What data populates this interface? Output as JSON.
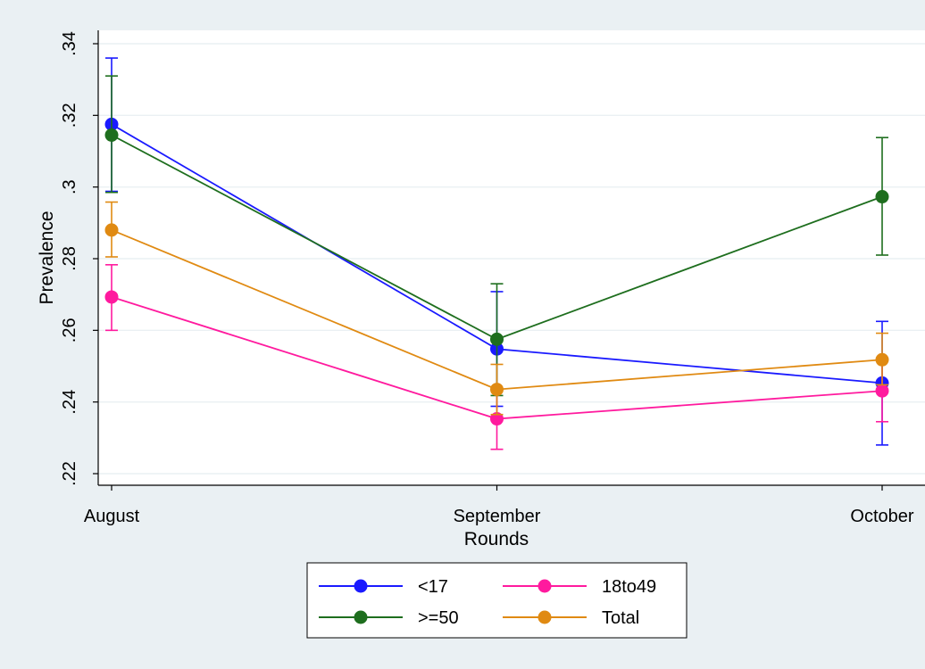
{
  "chart_data": {
    "type": "line",
    "xlabel": "Rounds",
    "ylabel": "Prevalence",
    "categories": [
      "August",
      "September",
      "October"
    ],
    "ylim": [
      0.22,
      0.34
    ],
    "yticks": [
      0.22,
      0.24,
      0.26,
      0.28,
      0.3,
      0.32,
      0.34
    ],
    "ytick_labels": [
      ".22",
      ".24",
      ".26",
      ".28",
      ".3",
      ".32",
      ".34"
    ],
    "grid": true,
    "error_bars": true,
    "legend_position": "bottom",
    "series": [
      {
        "name": "<17",
        "color": "#1a1aff",
        "values": [
          0.3175,
          0.2548,
          0.2453
        ],
        "lower": [
          0.2988,
          0.2388,
          0.228
        ],
        "upper": [
          0.336,
          0.2708,
          0.2625
        ]
      },
      {
        "name": "18to49",
        "color": "#ff1a9e",
        "values": [
          0.2693,
          0.2353,
          0.2431
        ],
        "lower": [
          0.26,
          0.2268,
          0.2345
        ],
        "upper": [
          0.2783,
          0.244,
          0.2515
        ]
      },
      {
        "name": ">=50",
        "color": "#1e6e1e",
        "values": [
          0.3145,
          0.2575,
          0.2973
        ],
        "lower": [
          0.2985,
          0.2418,
          0.281
        ],
        "upper": [
          0.331,
          0.273,
          0.3138
        ]
      },
      {
        "name": "Total",
        "color": "#e08a12",
        "values": [
          0.288,
          0.2435,
          0.2518
        ],
        "lower": [
          0.2805,
          0.2365,
          0.2448
        ],
        "upper": [
          0.2958,
          0.2505,
          0.2592
        ]
      }
    ]
  }
}
